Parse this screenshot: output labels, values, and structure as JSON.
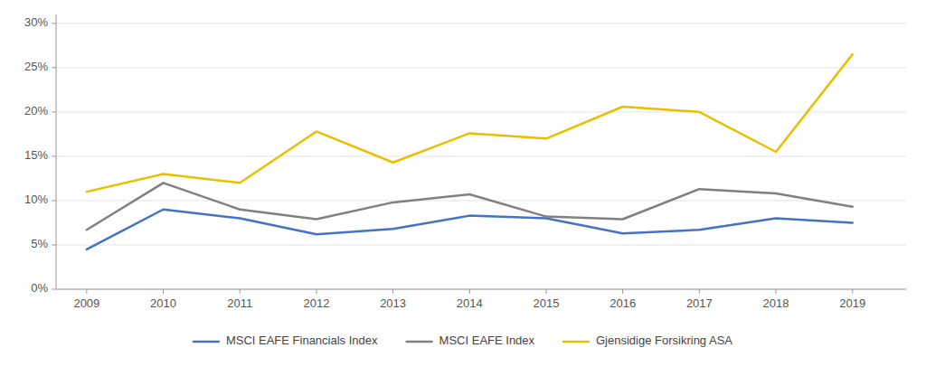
{
  "chart_data": {
    "type": "line",
    "x": [
      2009,
      2010,
      2011,
      2012,
      2013,
      2014,
      2015,
      2016,
      2017,
      2018,
      2019
    ],
    "series": [
      {
        "name": "MSCI EAFE Financials Index",
        "color": "#4472C4",
        "values": [
          0.045,
          0.09,
          0.08,
          0.062,
          0.068,
          0.083,
          0.08,
          0.063,
          0.067,
          0.08,
          0.075
        ]
      },
      {
        "name": "MSCI EAFE Index",
        "color": "#808080",
        "values": [
          0.067,
          0.12,
          0.09,
          0.079,
          0.098,
          0.107,
          0.082,
          0.079,
          0.113,
          0.108,
          0.093
        ]
      },
      {
        "name": "Gjensidige Forsikring ASA",
        "color": "#E8C000",
        "values": [
          0.11,
          0.13,
          0.12,
          0.178,
          0.143,
          0.176,
          0.17,
          0.206,
          0.2,
          0.155,
          0.265
        ]
      }
    ],
    "xlim": [
      2008.6,
      2019.7
    ],
    "xticks": [
      2009,
      2010,
      2011,
      2012,
      2013,
      2014,
      2015,
      2016,
      2017,
      2018,
      2019
    ],
    "ylim": [
      0,
      0.31
    ],
    "yticks": [
      {
        "value": 0,
        "label": "0%"
      },
      {
        "value": 0.05,
        "label": "5%"
      },
      {
        "value": 0.1,
        "label": "10%"
      },
      {
        "value": 0.15,
        "label": "15%"
      },
      {
        "value": 0.2,
        "label": "20%"
      },
      {
        "value": 0.25,
        "label": "25%"
      },
      {
        "value": 0.3,
        "label": "30%"
      }
    ],
    "grid": true,
    "legend": "bottom"
  }
}
